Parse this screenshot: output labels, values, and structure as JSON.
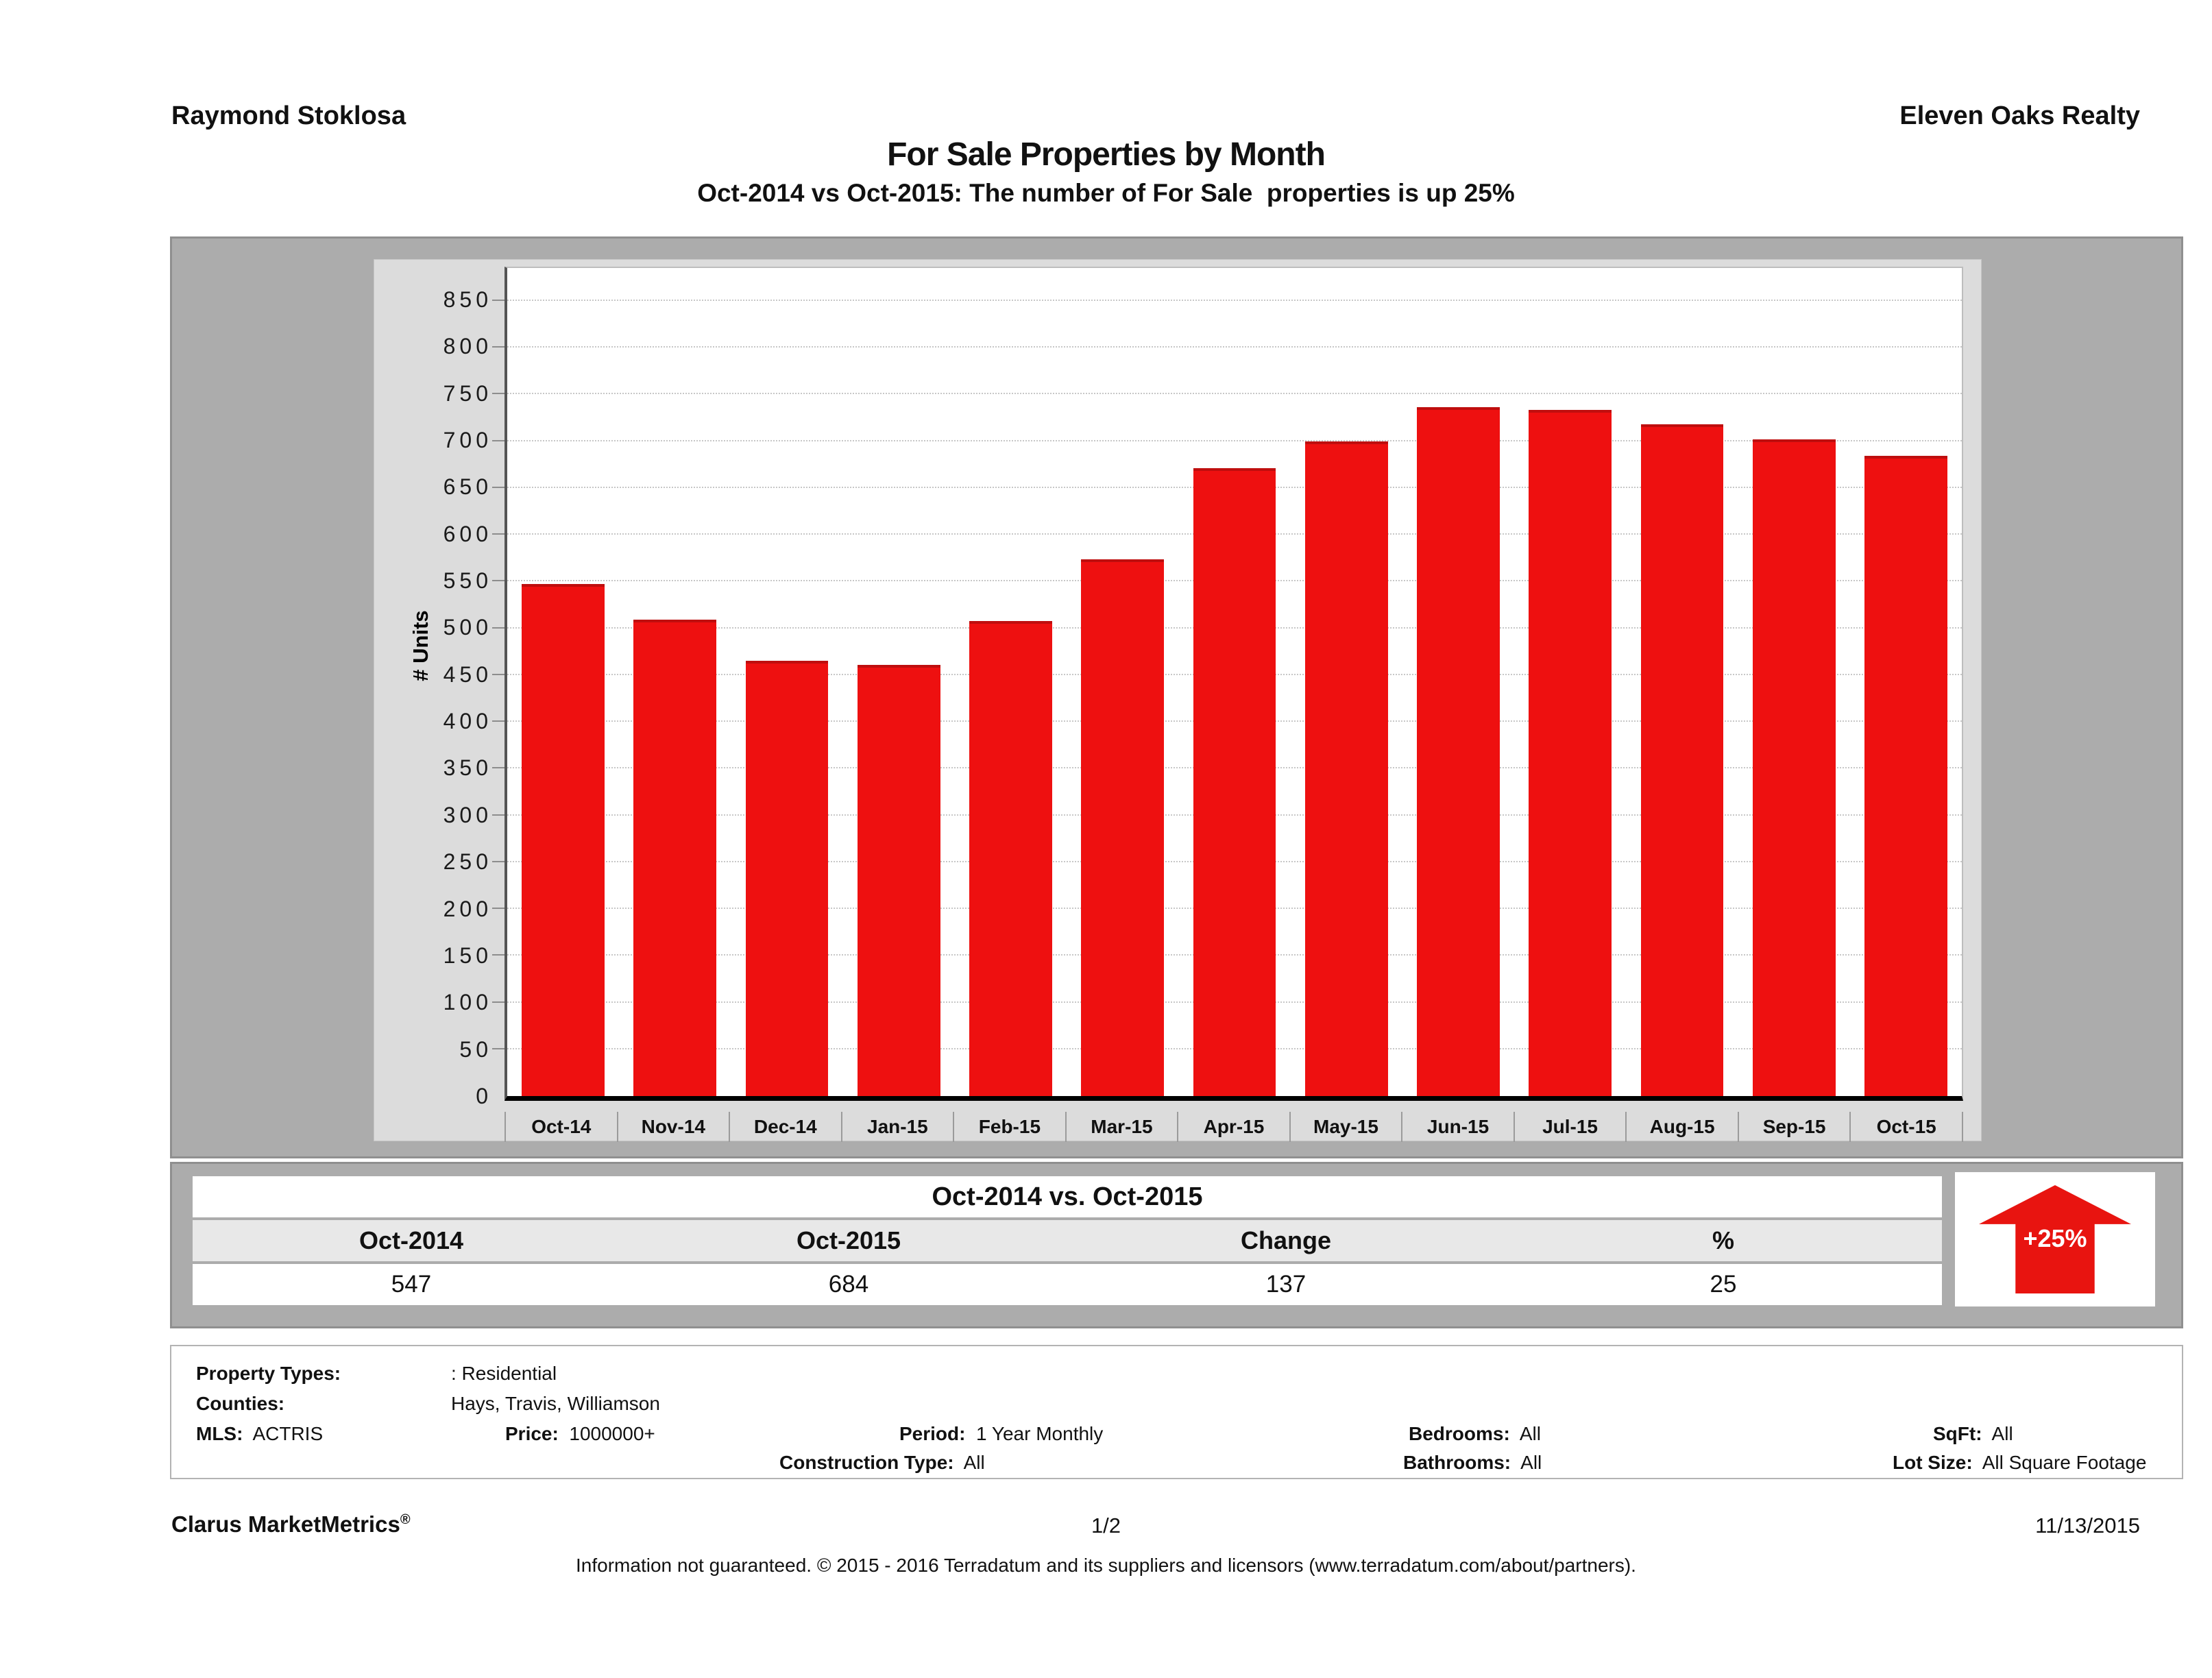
{
  "header": {
    "agent_name": "Raymond Stoklosa",
    "company": "Eleven Oaks Realty"
  },
  "title": "For Sale Properties by Month",
  "subtitle": "Oct-2014 vs Oct-2015: The number of For Sale  properties is up 25%",
  "chart_data": {
    "type": "bar",
    "title": "For Sale Properties by Month",
    "categories": [
      "Oct-14",
      "Nov-14",
      "Dec-14",
      "Jan-15",
      "Feb-15",
      "Mar-15",
      "Apr-15",
      "May-15",
      "Jun-15",
      "Jul-15",
      "Aug-15",
      "Sep-15",
      "Oct-15"
    ],
    "values": [
      547,
      509,
      465,
      461,
      508,
      574,
      671,
      700,
      736,
      733,
      718,
      702,
      684
    ],
    "xlabel": "",
    "ylabel": "# Units",
    "ylim": [
      0,
      885
    ],
    "ytick_interval": 50,
    "ytick_max": 850,
    "grid": true,
    "legend": false,
    "bar_color": "#ee1010"
  },
  "summary_table": {
    "title": "Oct-2014 vs. Oct-2015",
    "columns": [
      "Oct-2014",
      "Oct-2015",
      "Change",
      "%"
    ],
    "values": [
      "547",
      "684",
      "137",
      "25"
    ],
    "badge": "+25%"
  },
  "details": {
    "property_types_label": "Property Types:",
    "property_types_value": ": Residential",
    "counties_label": "Counties:",
    "counties_value": "Hays, Travis, Williamson",
    "mls_label": "MLS:",
    "mls_value": "ACTRIS",
    "price_label": "Price:",
    "price_value": "1000000+",
    "period_label": "Period:",
    "period_value": "1 Year Monthly",
    "construction_label": "Construction Type:",
    "construction_value": "All",
    "bedrooms_label": "Bedrooms:",
    "bedrooms_value": "All",
    "bathrooms_label": "Bathrooms:",
    "bathrooms_value": "All",
    "sqft_label": "SqFt:",
    "sqft_value": "All",
    "lot_label": "Lot Size:",
    "lot_value": "All Square Footage"
  },
  "footer": {
    "brand": "Clarus MarketMetrics",
    "brand_reg": "®",
    "page": "1/2",
    "date": "11/13/2015",
    "disclaimer": "Information not guaranteed. © 2015 - 2016 Terradatum and its suppliers and licensors (www.terradatum.com/about/partners)."
  }
}
